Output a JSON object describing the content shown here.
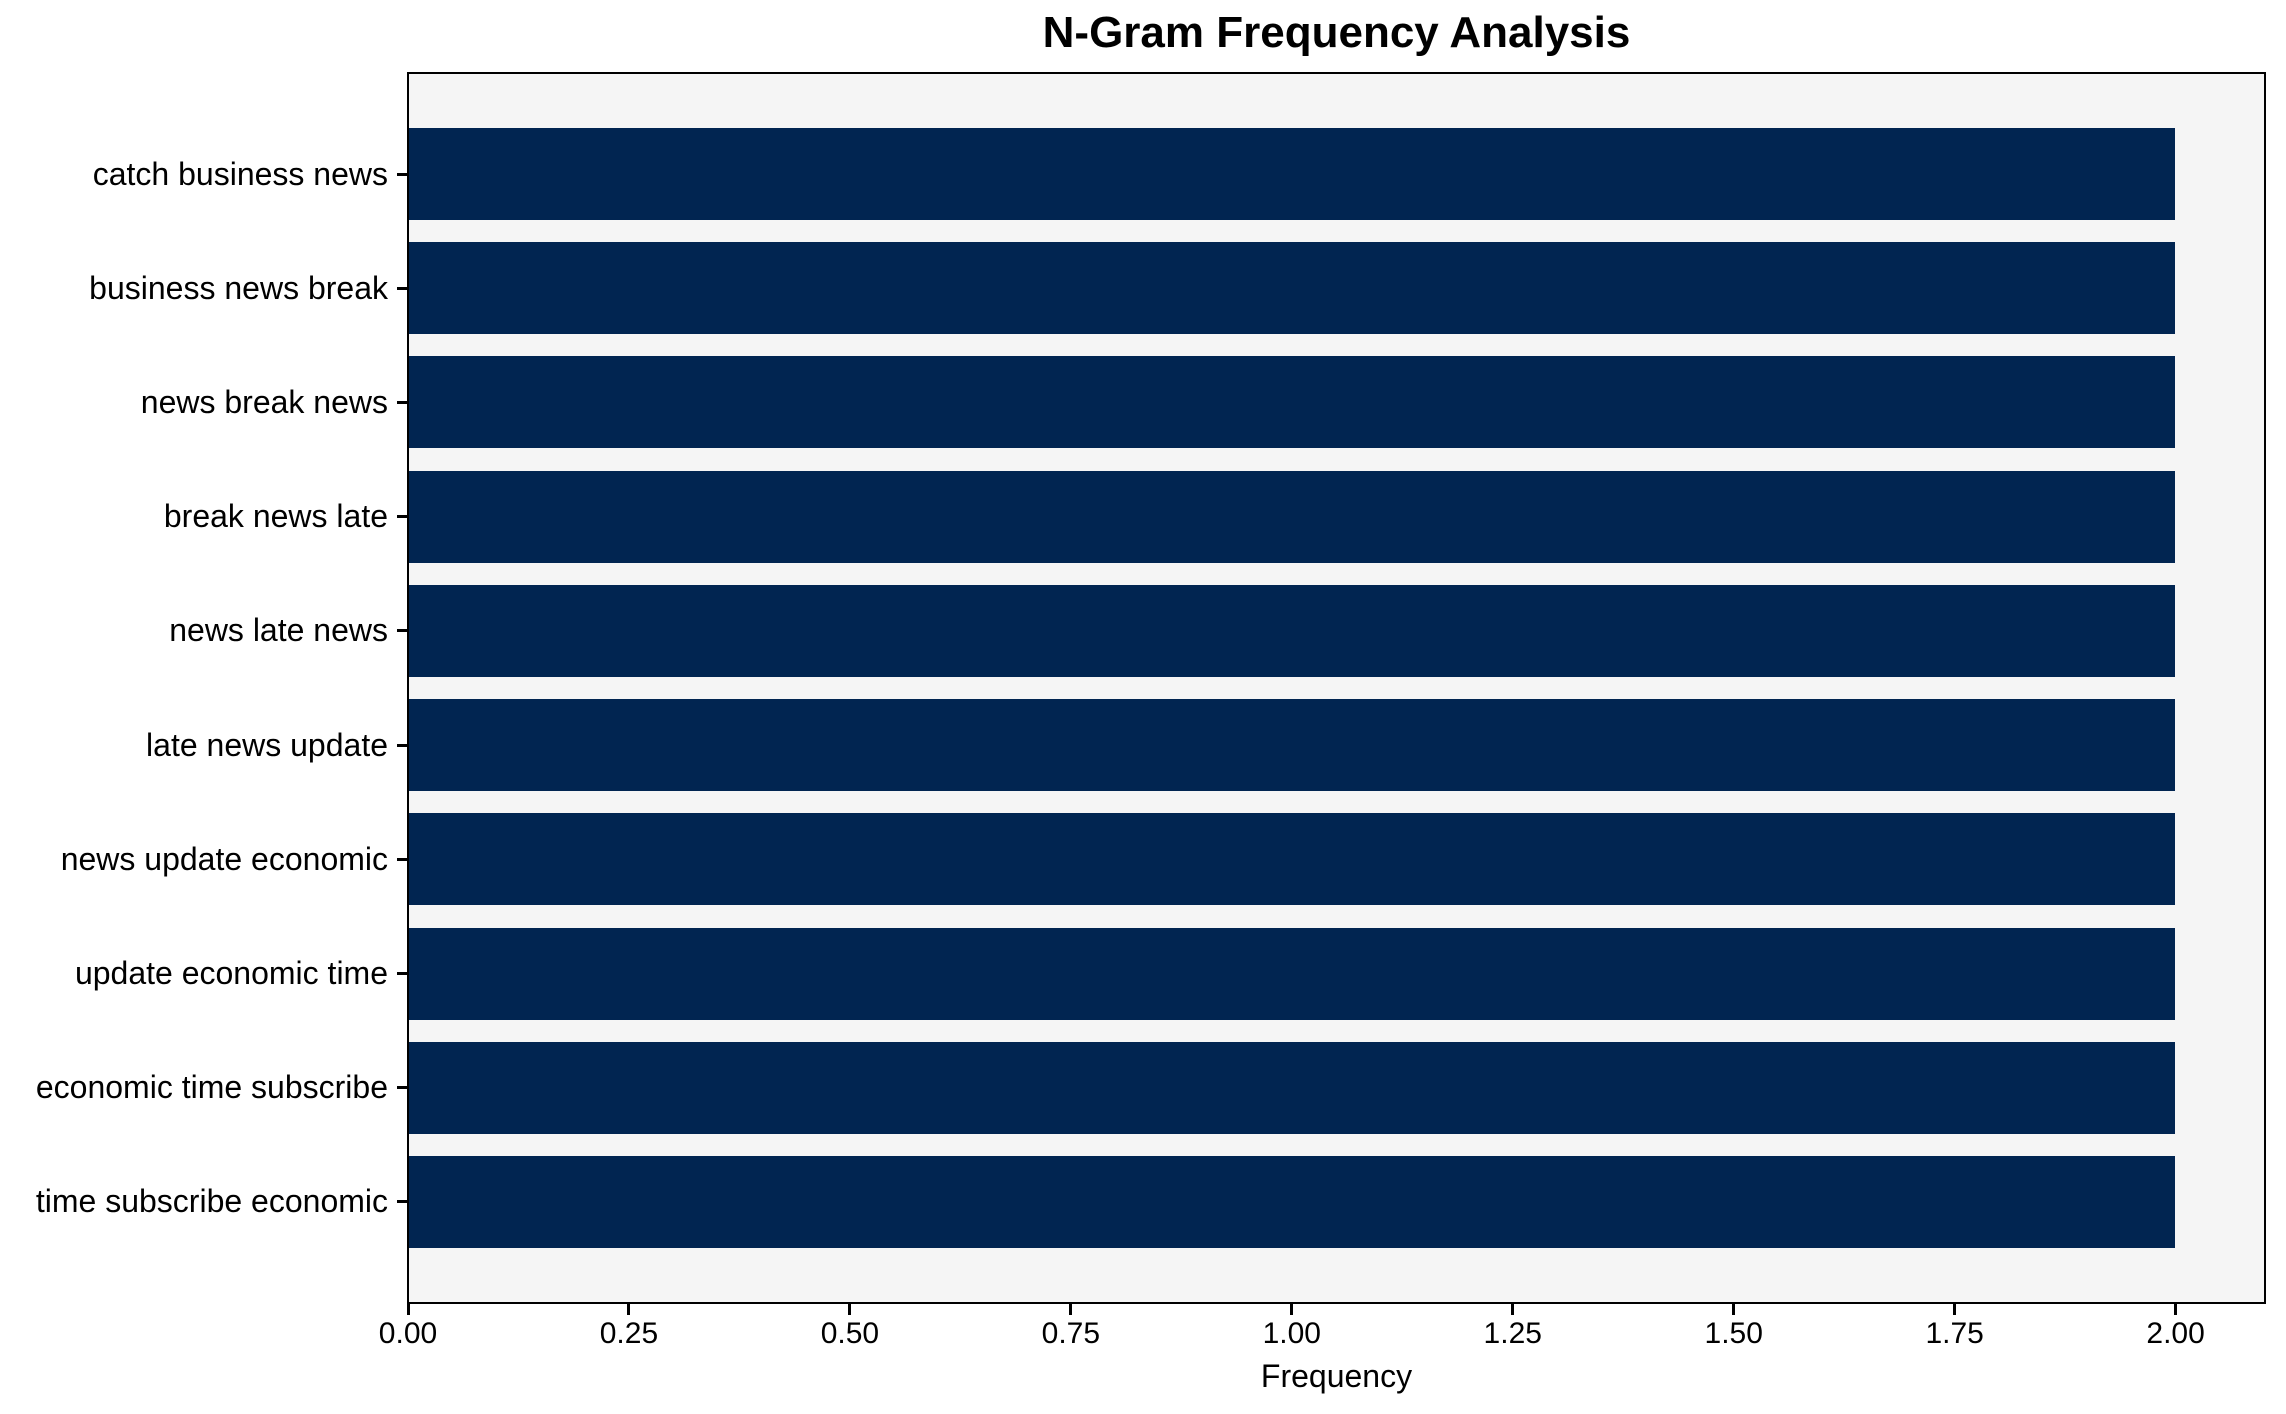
{
  "chart_data": {
    "type": "bar",
    "orientation": "horizontal",
    "title": "N-Gram Frequency Analysis",
    "xlabel": "Frequency",
    "categories": [
      "catch business news",
      "business news break",
      "news break news",
      "break news late",
      "news late news",
      "late news update",
      "news update economic",
      "update economic time",
      "economic time subscribe",
      "time subscribe economic"
    ],
    "values": [
      2,
      2,
      2,
      2,
      2,
      2,
      2,
      2,
      2,
      2
    ],
    "x_tick_labels": [
      "0.00",
      "0.25",
      "0.50",
      "0.75",
      "1.00",
      "1.25",
      "1.50",
      "1.75",
      "2.00"
    ],
    "xlim": [
      0,
      2.1
    ],
    "bar_color": "#012551",
    "plot_background": "#f5f5f5",
    "axis_color": "#000000",
    "grid": false,
    "legend_position": "none"
  }
}
